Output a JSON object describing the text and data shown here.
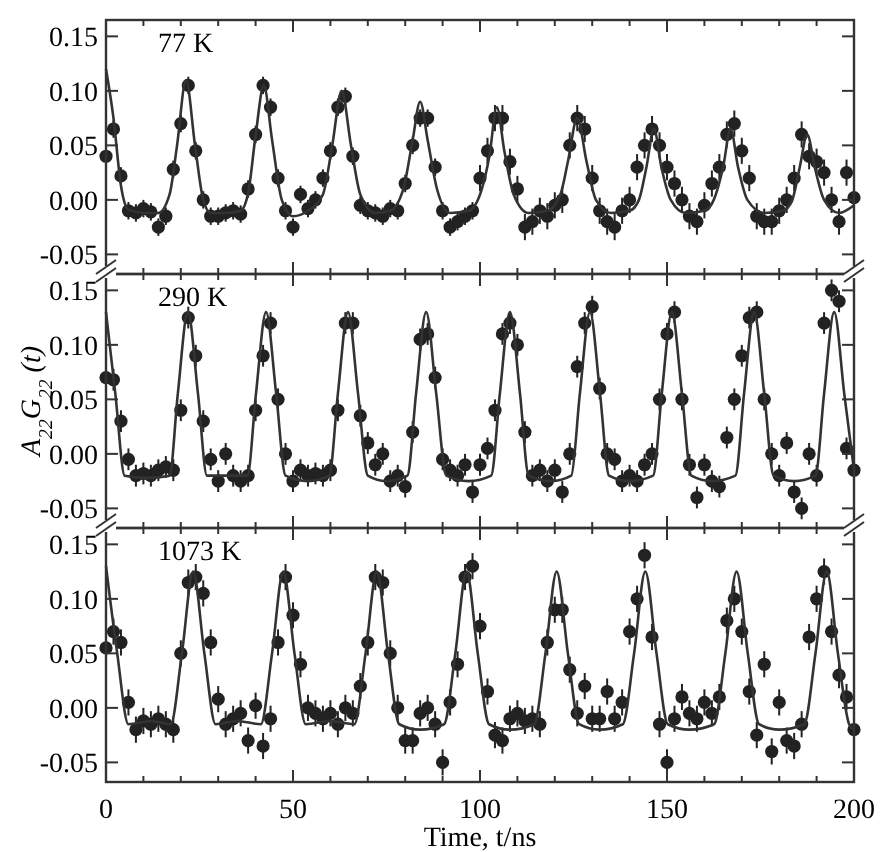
{
  "chart_data": [
    {
      "type": "scatter",
      "annotations": [
        "77 K"
      ],
      "xlim": [
        0,
        200
      ],
      "ylim": [
        -0.068,
        0.165
      ],
      "yticks": [
        {
          "value": -0.05,
          "label": "-0.05"
        },
        {
          "value": 0,
          "label": "0.00"
        },
        {
          "value": 0.05,
          "label": "0.05"
        },
        {
          "value": 0.1,
          "label": "0.10"
        },
        {
          "value": 0.15,
          "label": "0.15"
        }
      ],
      "xticks": [
        0,
        {
          "value": 10,
          "label": null
        },
        {
          "value": 20,
          "label": null
        },
        {
          "value": 30,
          "label": null
        },
        {
          "value": 40,
          "label": null
        },
        50,
        {
          "value": 60,
          "label": null
        },
        {
          "value": 70,
          "label": null
        },
        {
          "value": 80,
          "label": null
        },
        {
          "value": 90,
          "label": null
        },
        100,
        {
          "value": 110,
          "label": null
        },
        {
          "value": 120,
          "label": null
        },
        {
          "value": 130,
          "label": null
        },
        {
          "value": 140,
          "label": null
        },
        150,
        {
          "value": 160,
          "label": null
        },
        {
          "value": 170,
          "label": null
        },
        {
          "value": 180,
          "label": null
        },
        {
          "value": 190,
          "label": null
        },
        200
      ],
      "tick_labels": "y",
      "line_style": "solid",
      "x": [
        0,
        2,
        4,
        6,
        8,
        10,
        12,
        14,
        16,
        18,
        20,
        22,
        24,
        26,
        28,
        30,
        32,
        34,
        36,
        38,
        40,
        42,
        44,
        46,
        48,
        50,
        52,
        54,
        56,
        58,
        60,
        62,
        64,
        66,
        68,
        70,
        72,
        74,
        76,
        78,
        80,
        82,
        84,
        86,
        88,
        90,
        92,
        94,
        96,
        98,
        100,
        102,
        104,
        106,
        108,
        110,
        112,
        114,
        116,
        118,
        120,
        122,
        124,
        126,
        128,
        130,
        132,
        134,
        136,
        138,
        140,
        142,
        144,
        146,
        148,
        150,
        152,
        154,
        156,
        158,
        160,
        162,
        164,
        166,
        168,
        170,
        172,
        174,
        176,
        178,
        180,
        182,
        184,
        186,
        188,
        190,
        192,
        194,
        196,
        198,
        200
      ],
      "series": [
        {
          "type": "scatter",
          "marker": "circle",
          "color": "#222222",
          "values": [
            0.04,
            0.065,
            0.022,
            -0.01,
            -0.012,
            -0.008,
            -0.011,
            -0.025,
            -0.015,
            0.028,
            0.07,
            0.105,
            0.045,
            0,
            -0.015,
            -0.015,
            -0.012,
            -0.01,
            -0.013,
            0.01,
            0.06,
            0.105,
            0.085,
            0.02,
            -0.01,
            -0.025,
            0.005,
            -0.008,
            0,
            0.02,
            0.045,
            0.085,
            0.095,
            0.04,
            -0.005,
            -0.01,
            -0.012,
            -0.015,
            -0.008,
            -0.01,
            0.015,
            0.05,
            0.075,
            0.075,
            0.03,
            -0.01,
            -0.025,
            -0.02,
            -0.015,
            -0.01,
            0.02,
            0.045,
            0.075,
            0.075,
            0.035,
            0.01,
            -0.025,
            -0.02,
            -0.01,
            -0.015,
            -0.005,
            0,
            0.05,
            0.075,
            0.065,
            0.02,
            -0.01,
            -0.02,
            -0.025,
            -0.01,
            0,
            0.03,
            0.05,
            0.065,
            0.05,
            0.03,
            0.015,
            0,
            -0.015,
            -0.02,
            -0.005,
            0.015,
            0.03,
            0.06,
            0.07,
            0.045,
            0.02,
            -0.015,
            -0.02,
            -0.02,
            -0.01,
            0,
            0.02,
            0.06,
            0.04,
            0.035,
            0.025,
            0,
            -0.02,
            0.025,
            0.002
          ],
          "errors": [
            0.008,
            0.008,
            0.008,
            0.008,
            0.008,
            0.008,
            0.008,
            0.008,
            0.008,
            0.008,
            0.008,
            0.008,
            0.008,
            0.008,
            0.008,
            0.008,
            0.008,
            0.008,
            0.008,
            0.008,
            0.008,
            0.008,
            0.008,
            0.008,
            0.008,
            0.008,
            0.008,
            0.008,
            0.008,
            0.008,
            0.008,
            0.008,
            0.008,
            0.008,
            0.008,
            0.008,
            0.008,
            0.008,
            0.008,
            0.008,
            0.008,
            0.008,
            0.008,
            0.008,
            0.008,
            0.008,
            0.008,
            0.008,
            0.008,
            0.008,
            0.012,
            0.012,
            0.012,
            0.012,
            0.012,
            0.012,
            0.012,
            0.012,
            0.012,
            0.012,
            0.012,
            0.012,
            0.012,
            0.012,
            0.012,
            0.012,
            0.012,
            0.012,
            0.012,
            0.012,
            0.012,
            0.012,
            0.012,
            0.012,
            0.012,
            0.012,
            0.012,
            0.012,
            0.012,
            0.012,
            0.012,
            0.012,
            0.012,
            0.012,
            0.012,
            0.012,
            0.012,
            0.012,
            0.012,
            0.012,
            0.012,
            0.012,
            0.012,
            0.012,
            0.012,
            0.012,
            0.012,
            0.012,
            0.012,
            0.012,
            0.012
          ]
        },
        {
          "type": "line",
          "color": "#333333",
          "x": [
            0,
            2,
            4,
            6,
            10,
            14,
            17,
            19,
            21.4,
            23.8,
            26,
            28,
            32,
            36,
            38,
            40,
            42.2,
            44.4,
            47,
            50,
            54,
            58,
            60.5,
            63,
            65.5,
            68,
            72,
            76,
            79.5,
            82,
            84,
            86,
            88.5,
            92,
            97,
            100.5,
            102.5,
            104.5,
            106.5,
            109,
            113,
            118,
            121.5,
            123.5,
            126,
            128.5,
            131,
            135,
            140,
            142.5,
            144.5,
            146.5,
            148.5,
            151,
            155,
            160,
            162.5,
            165,
            167,
            169,
            171.5,
            176,
            181,
            183.5,
            185.5,
            187.5,
            189.5,
            192,
            196,
            200
          ],
          "values": [
            0.12,
            0.075,
            0.013,
            -0.009,
            -0.012,
            -0.012,
            0.005,
            0.05,
            0.11,
            0.05,
            0,
            -0.012,
            -0.012,
            -0.01,
            0.006,
            0.059,
            0.105,
            0.055,
            0,
            -0.015,
            -0.01,
            0.005,
            0.05,
            0.1,
            0.05,
            0.005,
            -0.012,
            -0.01,
            0.01,
            0.055,
            0.09,
            0.055,
            0.01,
            -0.012,
            -0.01,
            0.01,
            0.04,
            0.085,
            0.045,
            0.005,
            -0.012,
            -0.01,
            0.005,
            0.035,
            0.075,
            0.035,
            0,
            -0.012,
            -0.01,
            0,
            0.03,
            0.065,
            0.03,
            0,
            -0.012,
            -0.01,
            0,
            0.03,
            0.065,
            0.03,
            0,
            -0.012,
            -0.01,
            0,
            0.03,
            0.06,
            0.03,
            0,
            -0.012,
            -0.005
          ]
        }
      ]
    },
    {
      "type": "scatter",
      "annotations": [
        "290 K"
      ],
      "ylabel": "A$_{22}$G$_{22}$ (t)",
      "xlim": [
        0,
        200
      ],
      "ylim": [
        -0.068,
        0.165
      ],
      "yticks": [
        {
          "value": -0.05,
          "label": "-0.05"
        },
        {
          "value": 0,
          "label": "0.00"
        },
        {
          "value": 0.05,
          "label": "0.05"
        },
        {
          "value": 0.1,
          "label": "0.10"
        },
        {
          "value": 0.15,
          "label": "0.15"
        }
      ],
      "xticks": [
        0,
        {
          "value": 10,
          "label": null
        },
        {
          "value": 20,
          "label": null
        },
        {
          "value": 30,
          "label": null
        },
        {
          "value": 40,
          "label": null
        },
        50,
        {
          "value": 60,
          "label": null
        },
        {
          "value": 70,
          "label": null
        },
        {
          "value": 80,
          "label": null
        },
        {
          "value": 90,
          "label": null
        },
        100,
        {
          "value": 110,
          "label": null
        },
        {
          "value": 120,
          "label": null
        },
        {
          "value": 130,
          "label": null
        },
        {
          "value": 140,
          "label": null
        },
        150,
        {
          "value": 160,
          "label": null
        },
        {
          "value": 170,
          "label": null
        },
        {
          "value": 180,
          "label": null
        },
        {
          "value": 190,
          "label": null
        },
        200
      ],
      "tick_labels": "y",
      "line_style": "solid",
      "x": [
        0,
        2,
        4,
        6,
        8,
        10,
        12,
        14,
        16,
        18,
        20,
        22,
        24,
        26,
        28,
        30,
        32,
        34,
        36,
        38,
        40,
        42,
        44,
        46,
        48,
        50,
        52,
        54,
        56,
        58,
        60,
        62,
        64,
        66,
        68,
        70,
        72,
        74,
        76,
        78,
        80,
        82,
        84,
        86,
        88,
        90,
        92,
        94,
        96,
        98,
        100,
        102,
        104,
        106,
        108,
        110,
        112,
        114,
        116,
        118,
        120,
        122,
        124,
        126,
        128,
        130,
        132,
        134,
        136,
        138,
        140,
        142,
        144,
        146,
        148,
        150,
        152,
        154,
        156,
        158,
        160,
        162,
        164,
        166,
        168,
        170,
        172,
        174,
        176,
        178,
        180,
        182,
        184,
        186,
        188,
        190,
        192,
        194,
        196,
        198,
        200
      ],
      "series": [
        {
          "type": "scatter",
          "marker": "circle",
          "color": "#222222",
          "values": [
            0.07,
            0.068,
            0.03,
            -0.005,
            -0.02,
            -0.018,
            -0.02,
            -0.015,
            -0.012,
            -0.015,
            0.04,
            0.125,
            0.09,
            0.03,
            -0.005,
            -0.025,
            0,
            -0.02,
            -0.025,
            -0.02,
            0.04,
            0.09,
            0.12,
            0.05,
            0,
            -0.025,
            -0.015,
            -0.02,
            -0.018,
            -0.02,
            -0.015,
            0.04,
            0.12,
            0.12,
            0.035,
            0.01,
            -0.01,
            0,
            -0.025,
            -0.02,
            -0.03,
            0.02,
            0.105,
            0.11,
            0.07,
            -0.005,
            -0.015,
            -0.02,
            -0.01,
            -0.035,
            -0.01,
            0.005,
            0.04,
            0.11,
            0.12,
            0.1,
            0.02,
            -0.02,
            -0.015,
            -0.025,
            -0.015,
            -0.035,
            0,
            0.08,
            0.12,
            0.135,
            0.06,
            0,
            -0.005,
            -0.025,
            -0.02,
            -0.025,
            -0.01,
            0,
            0.05,
            0.11,
            0.13,
            0.05,
            -0.01,
            -0.04,
            -0.01,
            -0.025,
            -0.03,
            0.015,
            0.05,
            0.09,
            0.125,
            0.13,
            0.05,
            0,
            -0.02,
            0.01,
            -0.035,
            -0.05,
            0,
            -0.02,
            0.12,
            0.15,
            0.14,
            0.005,
            -0.015
          ],
          "errors": [
            0.01,
            0.01,
            0.01,
            0.01,
            0.01,
            0.01,
            0.01,
            0.01,
            0.01,
            0.01,
            0.01,
            0.01,
            0.01,
            0.01,
            0.01,
            0.01,
            0.01,
            0.01,
            0.01,
            0.01,
            0.01,
            0.01,
            0.01,
            0.01,
            0.01,
            0.01,
            0.01,
            0.01,
            0.01,
            0.01,
            0.01,
            0.01,
            0.01,
            0.01,
            0.01,
            0.01,
            0.01,
            0.01,
            0.01,
            0.01,
            0.01,
            0.01,
            0.01,
            0.01,
            0.01,
            0.01,
            0.01,
            0.01,
            0.01,
            0.01,
            0.01,
            0.01,
            0.01,
            0.01,
            0.01,
            0.01,
            0.01,
            0.01,
            0.01,
            0.01,
            0.01,
            0.01,
            0.01,
            0.01,
            0.01,
            0.01,
            0.01,
            0.01,
            0.01,
            0.01,
            0.01,
            0.01,
            0.01,
            0.01,
            0.01,
            0.01,
            0.01,
            0.01,
            0.01,
            0.01,
            0.01,
            0.01,
            0.01,
            0.01,
            0.01,
            0.01,
            0.01,
            0.01,
            0.01,
            0.01,
            0.01,
            0.01,
            0.01,
            0.01,
            0.01,
            0.01,
            0.01,
            0.01,
            0.01,
            0.01,
            0.01
          ]
        },
        {
          "type": "line",
          "color": "#333333",
          "x": [
            0,
            2.5,
            5,
            11,
            17,
            19.2,
            21.9,
            24.6,
            27,
            32,
            37.8,
            40.1,
            42.8,
            45.5,
            48,
            54,
            59.7,
            62,
            64.7,
            67.4,
            70,
            75,
            80.6,
            82.9,
            85.6,
            88.3,
            91,
            97,
            103,
            105.3,
            108,
            110.7,
            113,
            119,
            124.4,
            126.7,
            129.4,
            132.1,
            134.5,
            140,
            146.3,
            148.6,
            151.3,
            154,
            156.5,
            162,
            168.3,
            170.6,
            173.3,
            176,
            178.5,
            184,
            189.7,
            192,
            194.7,
            197.4,
            200
          ],
          "values": [
            0.13,
            0.055,
            -0.02,
            -0.022,
            -0.02,
            0.055,
            0.13,
            0.055,
            -0.02,
            -0.02,
            -0.02,
            0.055,
            0.13,
            0.055,
            -0.02,
            -0.025,
            -0.02,
            0.055,
            0.13,
            0.055,
            -0.02,
            -0.025,
            -0.02,
            0.055,
            0.13,
            0.055,
            -0.02,
            -0.025,
            -0.02,
            0.055,
            0.13,
            0.055,
            -0.02,
            -0.025,
            -0.02,
            0.055,
            0.13,
            0.055,
            -0.02,
            -0.025,
            -0.02,
            0.055,
            0.13,
            0.055,
            -0.02,
            -0.025,
            -0.02,
            0.055,
            0.13,
            0.055,
            -0.02,
            -0.025,
            -0.02,
            0.055,
            0.13,
            0.055,
            -0.015
          ]
        }
      ]
    },
    {
      "type": "scatter",
      "annotations": [
        "1073 K"
      ],
      "xlabel": "Time, t/ns",
      "xlim": [
        0,
        200
      ],
      "ylim": [
        -0.068,
        0.165
      ],
      "yticks": [
        {
          "value": -0.05,
          "label": "-0.05"
        },
        {
          "value": 0,
          "label": "0.00"
        },
        {
          "value": 0.05,
          "label": "0.05"
        },
        {
          "value": 0.1,
          "label": "0.10"
        },
        {
          "value": 0.15,
          "label": "0.15"
        }
      ],
      "xticks": [
        0,
        {
          "value": 10,
          "label": null
        },
        {
          "value": 20,
          "label": null
        },
        {
          "value": 30,
          "label": null
        },
        {
          "value": 40,
          "label": null
        },
        50,
        {
          "value": 60,
          "label": null
        },
        {
          "value": 70,
          "label": null
        },
        {
          "value": 80,
          "label": null
        },
        {
          "value": 90,
          "label": null
        },
        100,
        {
          "value": 110,
          "label": null
        },
        {
          "value": 120,
          "label": null
        },
        {
          "value": 130,
          "label": null
        },
        {
          "value": 140,
          "label": null
        },
        150,
        {
          "value": 160,
          "label": null
        },
        {
          "value": 170,
          "label": null
        },
        {
          "value": 180,
          "label": null
        },
        {
          "value": 190,
          "label": null
        },
        200
      ],
      "line_style": "solid",
      "x": [
        0,
        2,
        4,
        6,
        8,
        10,
        12,
        14,
        16,
        18,
        20,
        22,
        24,
        26,
        28,
        30,
        32,
        34,
        36,
        38,
        40,
        42,
        44,
        46,
        48,
        50,
        52,
        54,
        56,
        58,
        60,
        62,
        64,
        66,
        68,
        70,
        72,
        74,
        76,
        78,
        80,
        82,
        84,
        86,
        88,
        90,
        92,
        94,
        96,
        98,
        100,
        102,
        104,
        106,
        108,
        110,
        112,
        114,
        116,
        118,
        120,
        122,
        124,
        126,
        128,
        130,
        132,
        134,
        136,
        138,
        140,
        142,
        144,
        146,
        148,
        150,
        152,
        154,
        156,
        158,
        160,
        162,
        164,
        166,
        168,
        170,
        172,
        174,
        176,
        178,
        180,
        182,
        184,
        186,
        188,
        190,
        192,
        194,
        196,
        198,
        200
      ],
      "series": [
        {
          "type": "scatter",
          "marker": "circle",
          "color": "#222222",
          "values": [
            0.055,
            0.07,
            0.06,
            0.005,
            -0.02,
            -0.012,
            -0.015,
            -0.01,
            -0.015,
            -0.02,
            0.05,
            0.115,
            0.12,
            0.105,
            0.06,
            0.008,
            -0.015,
            -0.01,
            -0.005,
            -0.03,
            0.002,
            -0.035,
            -0.01,
            0.06,
            0.12,
            0.085,
            0.04,
            0,
            -0.005,
            -0.01,
            -0.005,
            -0.015,
            0,
            -0.005,
            0.02,
            0.06,
            0.12,
            0.115,
            0.05,
            0,
            -0.03,
            -0.03,
            -0.005,
            0,
            -0.015,
            -0.05,
            0.005,
            0.04,
            0.12,
            0.13,
            0.075,
            0.015,
            -0.025,
            -0.03,
            -0.01,
            -0.005,
            -0.012,
            -0.01,
            -0.015,
            0.06,
            0.09,
            0.09,
            0.035,
            -0.005,
            0.02,
            -0.01,
            -0.01,
            0.015,
            -0.01,
            0.005,
            0.07,
            0.1,
            0.14,
            0.065,
            -0.015,
            -0.05,
            -0.01,
            0.01,
            -0.005,
            -0.01,
            0.005,
            -0.005,
            0.01,
            0.08,
            0.1,
            0.07,
            0.015,
            -0.025,
            0.04,
            -0.04,
            0.005,
            -0.03,
            -0.035,
            -0.015,
            0.065,
            0.1,
            0.125,
            0.07,
            0.03,
            0.01,
            -0.02
          ],
          "errors": [
            0.012,
            0.012,
            0.012,
            0.012,
            0.012,
            0.012,
            0.012,
            0.012,
            0.012,
            0.012,
            0.012,
            0.012,
            0.012,
            0.012,
            0.012,
            0.012,
            0.012,
            0.012,
            0.012,
            0.012,
            0.012,
            0.012,
            0.012,
            0.012,
            0.012,
            0.012,
            0.012,
            0.012,
            0.012,
            0.012,
            0.012,
            0.012,
            0.012,
            0.012,
            0.012,
            0.012,
            0.012,
            0.012,
            0.012,
            0.012,
            0.012,
            0.012,
            0.012,
            0.012,
            0.012,
            0.012,
            0.012,
            0.012,
            0.012,
            0.012,
            0.012,
            0.012,
            0.012,
            0.012,
            0.012,
            0.012,
            0.012,
            0.012,
            0.012,
            0.012,
            0.012,
            0.012,
            0.012,
            0.012,
            0.012,
            0.012,
            0.012,
            0.012,
            0.012,
            0.012,
            0.012,
            0.012,
            0.012,
            0.012,
            0.012,
            0.012,
            0.012,
            0.012,
            0.012,
            0.012,
            0.012,
            0.012,
            0.012,
            0.012,
            0.012,
            0.012,
            0.012,
            0.012,
            0.012,
            0.012,
            0.012,
            0.012,
            0.012,
            0.012,
            0.012,
            0.012,
            0.012,
            0.012,
            0.012,
            0.012,
            0.012
          ]
        },
        {
          "type": "line",
          "color": "#333333",
          "x": [
            0,
            3,
            6,
            12,
            17.3,
            20.3,
            23.3,
            26.3,
            29.3,
            35,
            41.4,
            44.4,
            47.4,
            50.4,
            53.4,
            60,
            66.4,
            69.4,
            72.4,
            75.4,
            78.4,
            84,
            90.4,
            93.4,
            96.4,
            99.4,
            102.4,
            108,
            114.5,
            117.5,
            120.5,
            123.5,
            126.5,
            132,
            138.2,
            141.2,
            144.2,
            147.2,
            150.2,
            156,
            162.6,
            165.6,
            168.6,
            171.6,
            174.6,
            180,
            186.7,
            189.7,
            192.7,
            195.7,
            198.7,
            200
          ],
          "values": [
            0.13,
            0.05,
            -0.015,
            -0.012,
            -0.015,
            0.05,
            0.125,
            0.05,
            -0.015,
            -0.012,
            -0.015,
            0.05,
            0.125,
            0.05,
            -0.015,
            -0.012,
            -0.015,
            0.05,
            0.125,
            0.05,
            -0.015,
            -0.02,
            -0.015,
            0.05,
            0.125,
            0.05,
            -0.015,
            -0.02,
            -0.015,
            0.05,
            0.125,
            0.05,
            -0.015,
            -0.02,
            -0.015,
            0.05,
            0.125,
            0.05,
            -0.015,
            -0.02,
            -0.015,
            0.05,
            0.125,
            0.05,
            -0.015,
            -0.02,
            -0.015,
            0.05,
            0.125,
            0.05,
            -0.015,
            -0.02
          ]
        }
      ]
    }
  ]
}
